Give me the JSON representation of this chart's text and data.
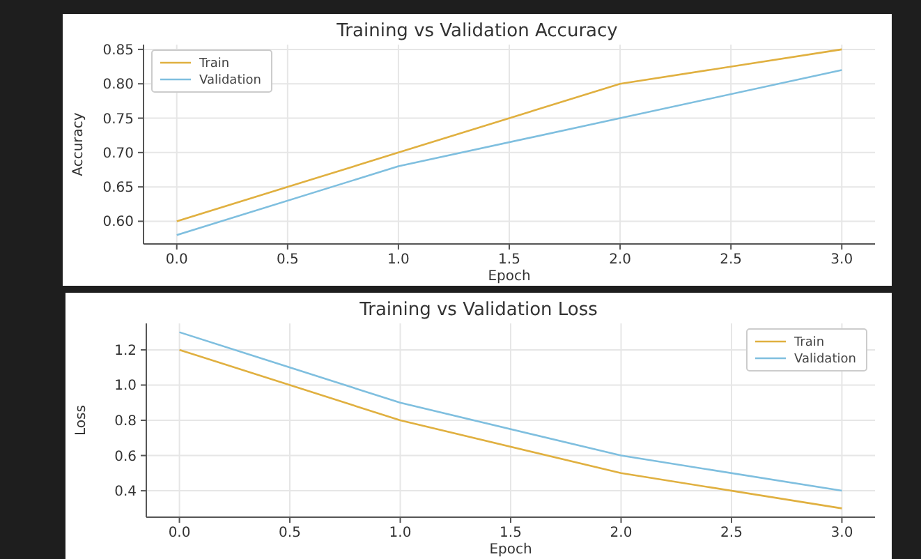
{
  "chart_data": [
    {
      "type": "line",
      "title": "Training vs Validation Accuracy",
      "xlabel": "Epoch",
      "ylabel": "Accuracy",
      "x": [
        0,
        1,
        2,
        3
      ],
      "series": [
        {
          "name": "Train",
          "color": "#e0b040",
          "values": [
            0.6,
            0.7,
            0.8,
            0.85
          ]
        },
        {
          "name": "Validation",
          "color": "#7fbfdf",
          "values": [
            0.58,
            0.68,
            0.75,
            0.82
          ]
        }
      ],
      "xlim": [
        -0.15,
        3.15
      ],
      "ylim": [
        0.567,
        0.857
      ],
      "xticks": [
        {
          "value": 0,
          "label": "0.0"
        },
        0.5,
        {
          "value": 1,
          "label": "1.0"
        },
        1.5,
        {
          "value": 2,
          "label": "2.0"
        },
        2.5,
        {
          "value": 3,
          "label": "3.0"
        }
      ],
      "yticks": [
        {
          "value": 0.6,
          "label": "0.60"
        },
        0.65,
        {
          "value": 0.7,
          "label": "0.70"
        },
        0.75,
        {
          "value": 0.8,
          "label": "0.80"
        },
        0.85
      ],
      "grid": true,
      "legend": "top left",
      "marker": "none",
      "line_style": "solid"
    },
    {
      "type": "line",
      "title": "Training vs Validation Loss",
      "xlabel": "Epoch",
      "ylabel": "Loss",
      "x": [
        0,
        1,
        2,
        3
      ],
      "series": [
        {
          "name": "Train",
          "color": "#e0b040",
          "values": [
            1.2,
            0.8,
            0.5,
            0.3
          ]
        },
        {
          "name": "Validation",
          "color": "#7fbfdf",
          "values": [
            1.3,
            0.9,
            0.6,
            0.4
          ]
        }
      ],
      "xlim": [
        -0.15,
        3.15
      ],
      "ylim": [
        0.25,
        1.35
      ],
      "xticks": [
        {
          "value": 0,
          "label": "0.0"
        },
        0.5,
        {
          "value": 1,
          "label": "1.0"
        },
        1.5,
        {
          "value": 2,
          "label": "2.0"
        },
        2.5,
        {
          "value": 3,
          "label": "3.0"
        }
      ],
      "yticks": [
        0.4,
        0.6,
        0.8,
        {
          "value": 1,
          "label": "1.0"
        },
        1.2
      ],
      "grid": true,
      "legend": "top right",
      "marker": "none",
      "line_style": "solid"
    }
  ]
}
